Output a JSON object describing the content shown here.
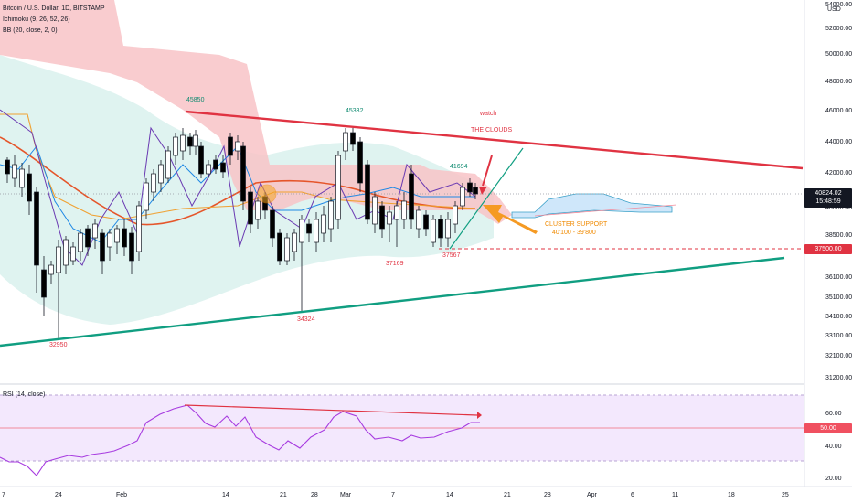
{
  "legend": {
    "symbol": "Bitcoin / U.S. Dollar, 1D, BITSTAMP",
    "ichimoku": "Ichimoku (9, 26, 52, 26)",
    "bb": "BB (20, close, 2, 0)"
  },
  "price_axis": {
    "currency": "USD",
    "ticks": [
      "54000.00",
      "52000.00",
      "50000.00",
      "48000.00",
      "46000.00",
      "44000.00",
      "42000.00",
      "40000.00",
      "38500.00",
      "37500.00",
      "36100.00",
      "35100.00",
      "34100.00",
      "33100.00",
      "32100.00",
      "31200.00"
    ],
    "current_price": "40824.02",
    "countdown": "15:48:59",
    "level_tag": "37500.00"
  },
  "rsi": {
    "title": "RSI (14, close)",
    "ticks": [
      "60.00",
      "50.00",
      "40.00",
      "20.00"
    ],
    "current": "50.00"
  },
  "time_axis": {
    "labels": [
      "7",
      "24",
      "Feb",
      "14",
      "21",
      "28",
      "Mar",
      "7",
      "14",
      "21",
      "28",
      "Apr",
      "6",
      "11",
      "18",
      "25"
    ]
  },
  "annotations": {
    "high_1": "45850",
    "high_2": "45332",
    "high_3": "41694",
    "low_1": "32950",
    "low_2": "34324",
    "low_3": "37169",
    "low_4": "37567",
    "watch": "watch",
    "clouds": "THE CLOUDS",
    "cluster_line1": "CLUSTER SUPPORT",
    "cluster_line2": "40'100 - 39'800"
  },
  "colors": {
    "bull_candle": "#ffffff",
    "bear_candle": "#000000",
    "resistance": "#e03342",
    "support": "#109e81",
    "arrow_orange": "#f59a23",
    "rsi_line": "#b13cd6",
    "rsi_band": "#efe3fb",
    "cloud_red": "#f6b3b8",
    "cloud_teal": "#d8f1ef",
    "cloud_future": "#cfe7fa"
  }
}
